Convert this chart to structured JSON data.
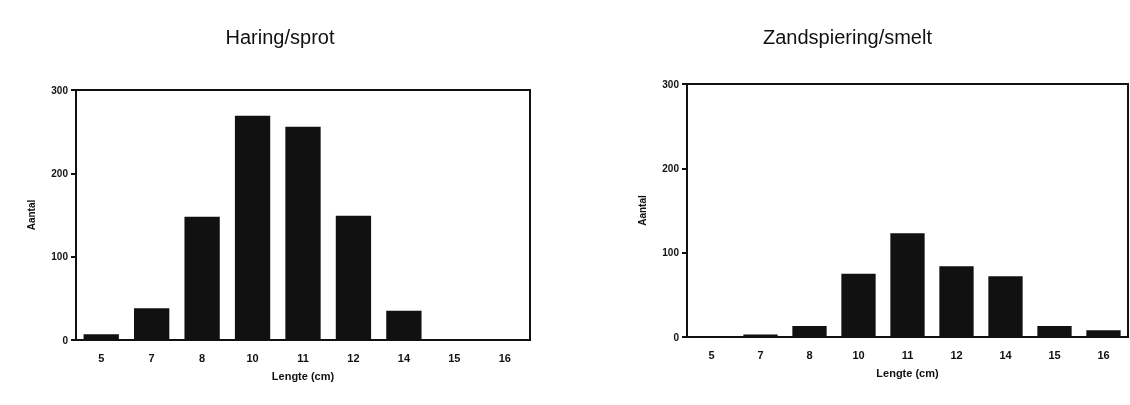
{
  "chart_data": [
    {
      "type": "bar",
      "title": "Haring/sprot",
      "xlabel": "Lengte (cm)",
      "ylabel": "Aantal",
      "categories": [
        "5",
        "7",
        "8",
        "10",
        "11",
        "12",
        "14",
        "15",
        "16"
      ],
      "series": [
        {
          "color": "#111111",
          "values": [
            7,
            38,
            148,
            269,
            256,
            149,
            35,
            0,
            0
          ]
        }
      ],
      "ylim": [
        0,
        300
      ],
      "yticks": [
        0,
        100,
        200,
        300
      ],
      "grid": false
    },
    {
      "type": "bar",
      "title": "Zandspiering/smelt",
      "xlabel": "Lengte (cm)",
      "ylabel": "Aantal",
      "categories": [
        "5",
        "7",
        "8",
        "10",
        "11",
        "12",
        "14",
        "15",
        "16"
      ],
      "series": [
        {
          "color": "#111111",
          "values": [
            1,
            3,
            13,
            75,
            123,
            84,
            72,
            13,
            8
          ]
        }
      ],
      "ylim": [
        0,
        300
      ],
      "yticks": [
        0,
        100,
        200,
        300
      ],
      "grid": false
    }
  ]
}
